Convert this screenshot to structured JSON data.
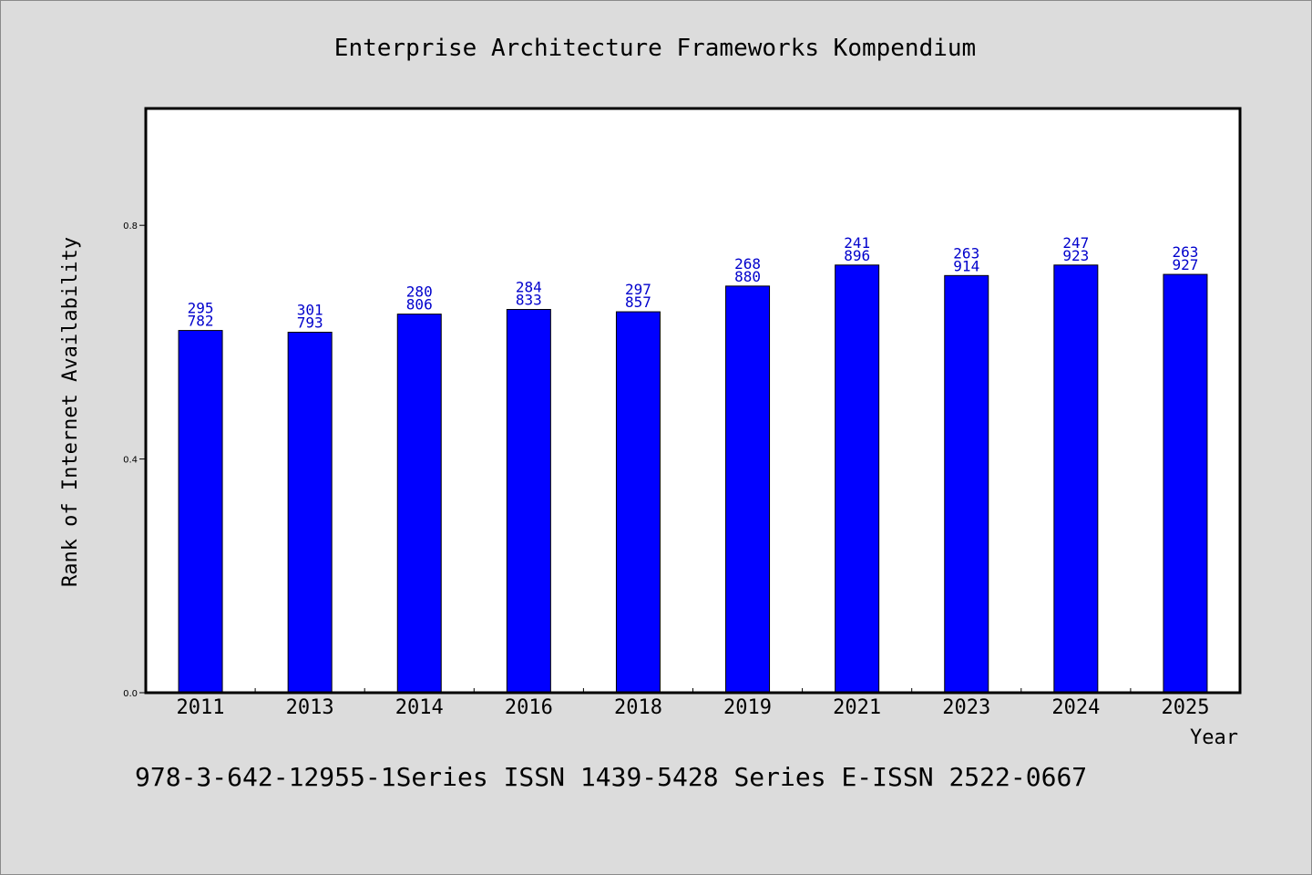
{
  "footer_text": "978-3-642-12955-1Series ISSN 1439-5428 Series E-ISSN 2522-0667",
  "colors": {
    "bar": "#0000ff",
    "label": "#0000cc",
    "background": "#dcdcdc",
    "plot_bg": "#ffffff"
  },
  "chart_data": {
    "type": "bar",
    "title": "Enterprise Architecture Frameworks Kompendium",
    "xlabel": "Year",
    "ylabel": "Rank of Internet Availability",
    "categories": [
      "2011",
      "2013",
      "2014",
      "2016",
      "2018",
      "2019",
      "2021",
      "2023",
      "2024",
      "2025"
    ],
    "values": [
      0.62,
      0.617,
      0.648,
      0.656,
      0.652,
      0.696,
      0.732,
      0.714,
      0.732,
      0.716
    ],
    "data_labels": [
      "295\n782",
      "301\n793",
      "280\n806",
      "284\n833",
      "297\n857",
      "268\n880",
      "241\n896",
      "263\n914",
      "247\n923",
      "263\n927"
    ],
    "yticks": [
      "0.0",
      "0.4",
      "0.8"
    ],
    "ylim": [
      0,
      1.0
    ],
    "grid": false,
    "legend": "none"
  }
}
